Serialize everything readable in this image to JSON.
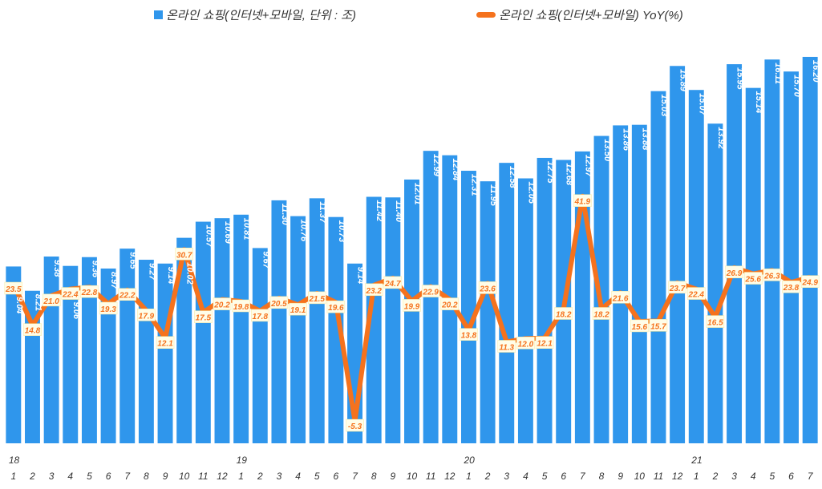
{
  "chart_data": {
    "type": "bar+line",
    "legend_placement": "top",
    "grid": false,
    "year_labels": [
      {
        "label": "18",
        "index": 0
      },
      {
        "label": "19",
        "index": 12
      },
      {
        "label": "20",
        "index": 24
      },
      {
        "label": "21",
        "index": 36
      }
    ],
    "categories": [
      "1",
      "2",
      "3",
      "4",
      "5",
      "6",
      "7",
      "8",
      "9",
      "10",
      "11",
      "12",
      "1",
      "2",
      "3",
      "4",
      "5",
      "6",
      "7",
      "8",
      "9",
      "10",
      "11",
      "12",
      "1",
      "2",
      "3",
      "4",
      "5",
      "6",
      "7",
      "8",
      "9",
      "10",
      "11",
      "12",
      "1",
      "2",
      "3",
      "4",
      "5",
      "6",
      "7"
    ],
    "series": [
      {
        "name": "온라인 쇼핑(인터넷+모바일, 단위 : 조)",
        "type": "bar",
        "color": "#2F96EC",
        "axis": "left",
        "values": [
          9.04,
          8.21,
          9.38,
          9.06,
          9.36,
          8.97,
          9.65,
          9.27,
          9.14,
          10.02,
          10.57,
          10.69,
          10.81,
          9.67,
          11.3,
          10.76,
          11.37,
          10.73,
          9.14,
          11.42,
          11.4,
          12.01,
          12.99,
          12.84,
          12.31,
          11.95,
          12.58,
          12.05,
          12.75,
          12.68,
          12.97,
          13.5,
          13.86,
          13.88,
          15.03,
          15.89,
          15.07,
          13.92,
          15.95,
          15.14,
          16.11,
          15.7,
          16.2
        ]
      },
      {
        "name": "온라인 쇼핑(인터넷+모바일) YoY(%)",
        "type": "line",
        "color": "#F5721D",
        "axis": "right",
        "values": [
          23.5,
          14.8,
          21.0,
          22.4,
          22.8,
          19.3,
          22.2,
          17.9,
          12.1,
          30.7,
          17.5,
          20.2,
          19.8,
          17.8,
          20.5,
          19.1,
          21.5,
          19.6,
          -5.3,
          23.2,
          24.7,
          19.9,
          22.9,
          20.2,
          13.8,
          23.6,
          11.3,
          12.0,
          12.1,
          18.2,
          41.9,
          18.2,
          21.6,
          15.6,
          15.7,
          23.7,
          22.4,
          16.5,
          26.9,
          25.6,
          26.3,
          23.8,
          24.9
        ]
      }
    ],
    "ylim_left": [
      3,
      16.5
    ],
    "ylim_right": [
      -10,
      73
    ]
  }
}
